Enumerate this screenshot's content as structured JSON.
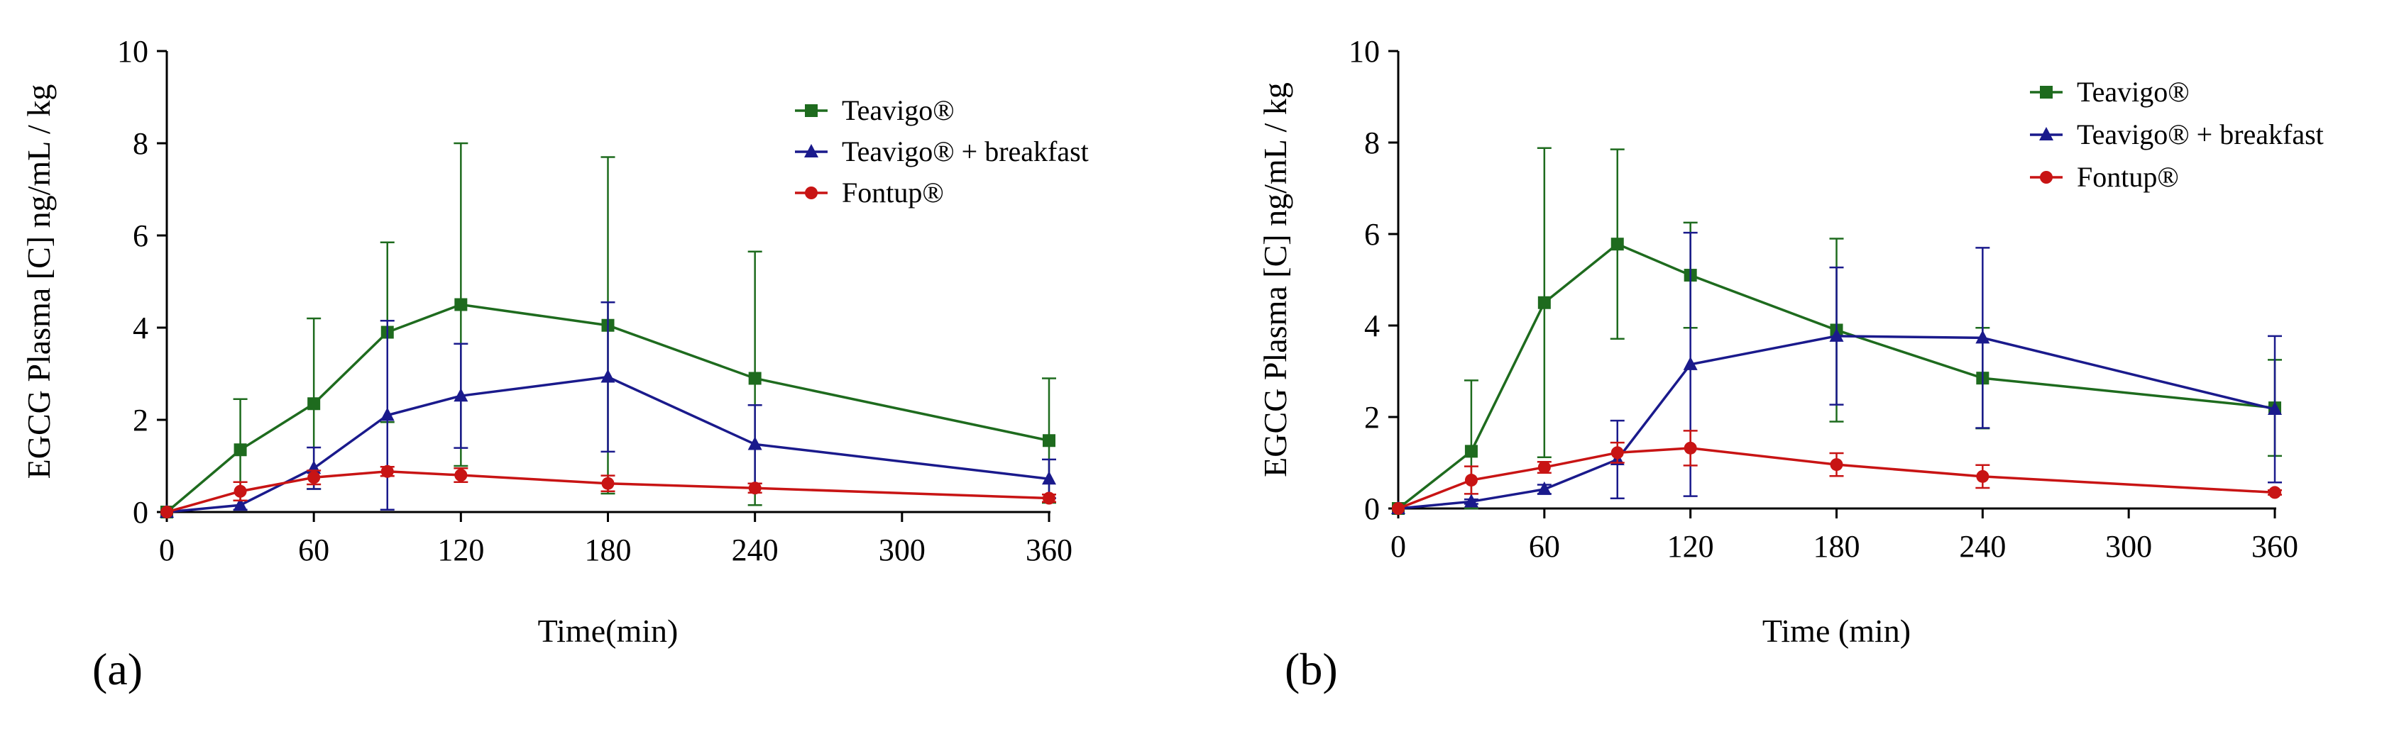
{
  "chart_data": [
    {
      "type": "line",
      "panel_label": "(a)",
      "xlabel": "Time(min)",
      "ylabel": "EGCG Plasma [C] ng/mL / kg",
      "xlim": [
        0,
        360
      ],
      "ylim": [
        0,
        10
      ],
      "xticks": [
        0,
        60,
        120,
        180,
        240,
        300,
        360
      ],
      "yticks": [
        0,
        2,
        4,
        6,
        8,
        10
      ],
      "grid": false,
      "legend_position": "top-right",
      "series": [
        {
          "name": "Teavigo®",
          "color": "#1e6b1e",
          "marker": "square",
          "x": [
            0,
            30,
            60,
            90,
            120,
            180,
            240,
            360
          ],
          "y": [
            0,
            1.35,
            2.35,
            3.9,
            4.5,
            4.05,
            2.9,
            1.55
          ],
          "err": [
            0,
            1.1,
            1.85,
            1.95,
            3.5,
            3.65,
            2.75,
            1.35
          ]
        },
        {
          "name": "Teavigo® + breakfast",
          "color": "#1a1a8c",
          "marker": "triangle",
          "x": [
            0,
            30,
            60,
            90,
            120,
            180,
            240,
            360
          ],
          "y": [
            0,
            0.15,
            0.95,
            2.1,
            2.52,
            2.93,
            1.47,
            0.72
          ],
          "err": [
            0,
            0.1,
            0.45,
            2.05,
            1.13,
            1.62,
            0.85,
            0.42
          ]
        },
        {
          "name": "Fontup®",
          "color": "#c81414",
          "marker": "circle",
          "x": [
            0,
            30,
            60,
            90,
            120,
            180,
            240,
            360
          ],
          "y": [
            0,
            0.45,
            0.75,
            0.88,
            0.8,
            0.62,
            0.52,
            0.3
          ],
          "err": [
            0,
            0.2,
            0.15,
            0.1,
            0.15,
            0.17,
            0.1,
            0.08
          ]
        }
      ]
    },
    {
      "type": "line",
      "panel_label": "(b)",
      "xlabel": "Time (min)",
      "ylabel": "EGCG Plasma [C] ng/mL / kg",
      "xlim": [
        0,
        360
      ],
      "ylim": [
        0,
        10
      ],
      "xticks": [
        0,
        60,
        120,
        180,
        240,
        300,
        360
      ],
      "yticks": [
        0,
        2,
        4,
        6,
        8,
        10
      ],
      "grid": false,
      "legend_position": "top-right",
      "series": [
        {
          "name": "Teavigo®",
          "color": "#1e6b1e",
          "marker": "square",
          "x": [
            0,
            30,
            60,
            90,
            120,
            180,
            240,
            360
          ],
          "y": [
            0,
            1.25,
            4.5,
            5.78,
            5.1,
            3.9,
            2.85,
            2.2
          ],
          "err": [
            0,
            1.55,
            3.38,
            2.07,
            1.15,
            2.0,
            1.1,
            1.05
          ]
        },
        {
          "name": "Teavigo® + breakfast",
          "color": "#1a1a8c",
          "marker": "triangle",
          "x": [
            0,
            30,
            60,
            90,
            120,
            180,
            240,
            360
          ],
          "y": [
            0,
            0.15,
            0.42,
            1.07,
            3.15,
            3.77,
            3.73,
            2.17
          ],
          "err": [
            0,
            0.05,
            0.1,
            0.85,
            2.88,
            1.5,
            1.97,
            1.6
          ]
        },
        {
          "name": "Fontup®",
          "color": "#c81414",
          "marker": "circle",
          "x": [
            0,
            30,
            60,
            90,
            120,
            180,
            240,
            360
          ],
          "y": [
            0,
            0.62,
            0.9,
            1.22,
            1.32,
            0.96,
            0.7,
            0.35
          ],
          "err": [
            0,
            0.3,
            0.12,
            0.22,
            0.38,
            0.25,
            0.25,
            0.05
          ]
        }
      ]
    }
  ]
}
